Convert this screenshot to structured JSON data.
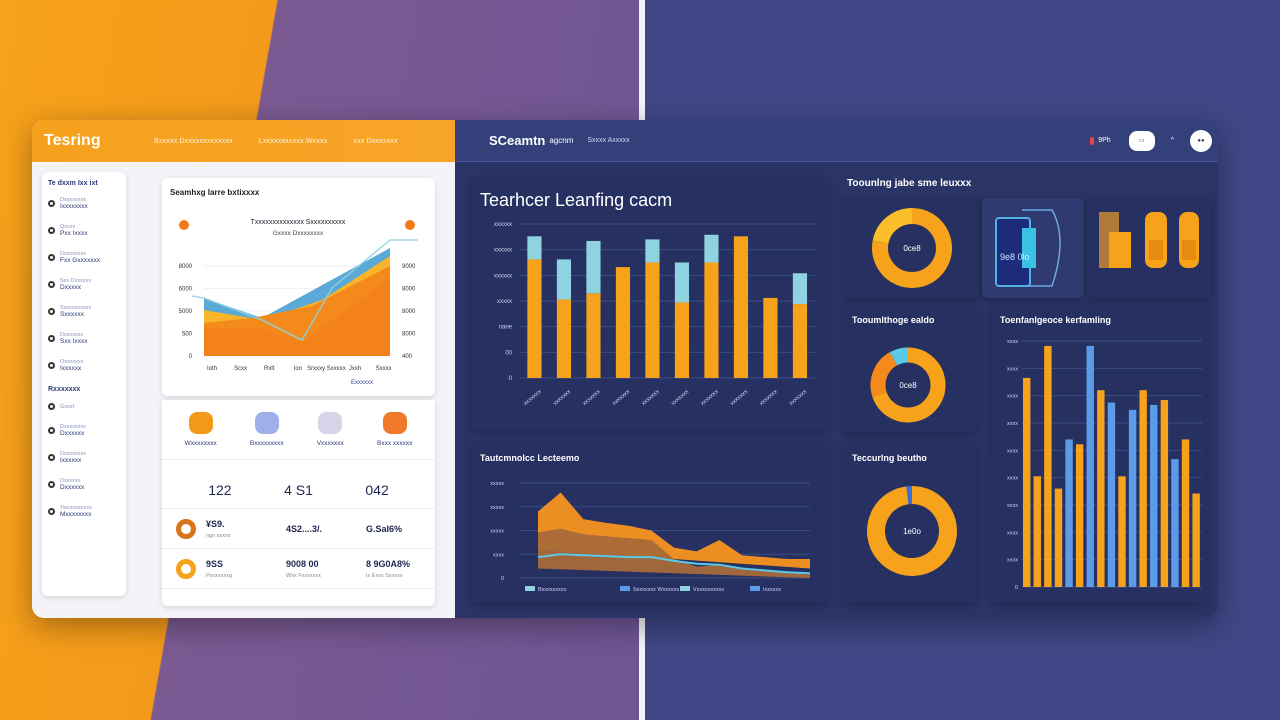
{
  "left": {
    "app_title": "Tesring",
    "nav": [
      "Bxxxxx Dxxxxxxxxxxxxx",
      "Lxxxxxxxxxxx Wxxxx",
      "xxx Dxxxxxxx"
    ],
    "sidebar": {
      "heading": "Te dxxm Ixx ixt",
      "items": [
        {
          "label": "Dxxxxxxxx",
          "sub": "Ixxxxxxxx"
        },
        {
          "label": "Qxxxx",
          "sub": "Pxx Ixxxx"
        },
        {
          "label": "Dxxxxxxxx",
          "sub": "Fxx Gxxxxxxx"
        },
        {
          "label": "Sxx Dxxxxxx",
          "sub": "Dxxxxx"
        },
        {
          "label": "Sxxxxxxxxxx",
          "sub": "Sxxxxxx"
        },
        {
          "label": "Dxxxxxxx",
          "sub": "Sxx Ixxxx"
        },
        {
          "label": "Oxxxxxxx",
          "sub": "Ixxxxxx"
        }
      ],
      "section2": "Rxxxxxxx",
      "items2": [
        {
          "label": "Gxxxt",
          "sub": ""
        },
        {
          "label": "Dxxxxxxxx",
          "sub": "Dxxxxxx"
        },
        {
          "label": "Dxxxxxxxx",
          "sub": "Ixxxxxx"
        },
        {
          "label": "Dxxxxxx",
          "sub": "Dxxxxxx"
        },
        {
          "label": "Twxxxxxxxxx",
          "sub": "Mxxxxxxxx"
        }
      ]
    },
    "area_card": {
      "title": "Seamhxg Iarre bxtixxxx",
      "chart_title": "Txxxxxxxxxxxxxx Sxxxxxxxxxx",
      "chart_subtitle": "Gxxxx Dxxxxxxxx",
      "y_left": [
        "0",
        "500",
        "5000",
        "6000",
        "8000"
      ],
      "y_right": [
        "400",
        "8000",
        "8000",
        "8000",
        "9000"
      ],
      "x": [
        "Ioth",
        "Scxx",
        "Rxlt",
        "Ion",
        "Srxxxy Sxxxxx",
        "Jxxh",
        "Sxxxx"
      ],
      "link": "Exxxxxx"
    },
    "icons": [
      {
        "label": "Wxxxxxxxx",
        "icon": "cloud-icon"
      },
      {
        "label": "Bxxxxxxxxx",
        "icon": "book-icon"
      },
      {
        "label": "Vxxxxxxx",
        "icon": "folder-icon"
      },
      {
        "label": "Bxxx xxxxxx",
        "icon": "refresh-icon"
      }
    ],
    "stats": {
      "headline": [
        "122",
        "4 S1",
        "042"
      ],
      "rows": [
        {
          "a": "¥S9.",
          "a_sub": "ngn xxxxx",
          "b": "4S2....3/.",
          "c": "G.SaI6%",
          "c_sub": ""
        },
        {
          "a": "9SS",
          "a_sub": "Pxxxxxxxg",
          "b": "9008 00",
          "b_sub": "Wxx Fxxxxxxx",
          "c": "8 9G0A8%",
          "c_sub": "Ix Exxx Sxxxxx"
        }
      ]
    }
  },
  "right": {
    "brand": "SCeamtn",
    "brand_sub": "agcnm",
    "nav": "Sxxxx Axxxxx",
    "status": "9Ph",
    "colors": {
      "orange": "#f7a21b",
      "cyan": "#8fd3e0",
      "blue": "#5b9be8",
      "navy": "#2a3467"
    },
    "main_title": "Tearhcer Leanfing cacm",
    "donut_section_title": "Toounlng jabe sme leuxxx",
    "donut1_label": "0ce8",
    "donut2_title": "Tooumlthoge ealdo",
    "donut2_label": "0ce8",
    "donut3_title": "Teccurlng beutho",
    "donut3_label": "1e0o",
    "tablet_label": "9e8 0lo",
    "line_title": "Tautcmnolcc Lecteemo",
    "line_legend": [
      "Bxxxxxxxxx",
      "Sxxxxxxx Wxxxxxx",
      "Vxxxxxxxxxx",
      "Ixxxxxx"
    ],
    "bar2_title": "Toenfanlgeoce kerfamling"
  },
  "chart_data": [
    {
      "type": "bar",
      "title": "Tearhcer Leanfing cacm",
      "y_ticks": [
        "0",
        "00",
        "nane",
        "xxxxx",
        "xxxxxx",
        "xxxxxx",
        "xxxxxx"
      ],
      "ylim": [
        0,
        100
      ],
      "categories": [
        "xxxxxxx",
        "xxxxxxx",
        "xxxxxxx",
        "xxxxxxx",
        "xxxxxxx",
        "xxxxxxx",
        "xxxxxxx",
        "xxxxxxx",
        "xxxxxxx",
        "xxxxxxx"
      ],
      "series": [
        {
          "values": [
            77,
            51,
            55,
            72,
            75,
            49,
            75,
            92,
            52,
            48
          ]
        },
        {
          "values": [
            15,
            26,
            34,
            0,
            15,
            26,
            18,
            0,
            0,
            20
          ]
        }
      ]
    },
    {
      "type": "area",
      "title": "Tautcmnolcc Lecteemo",
      "y_ticks": [
        "0",
        "xxxx",
        "xxxxx",
        "xxxxx",
        "xxxxx"
      ],
      "ylim": [
        0,
        100
      ],
      "x": [
        0,
        1,
        2,
        3,
        4,
        5,
        6,
        7,
        8,
        9,
        10,
        11,
        12
      ],
      "series": [
        {
          "values": [
            70,
            90,
            62,
            58,
            55,
            50,
            32,
            28,
            40,
            24,
            22,
            20,
            20
          ]
        },
        {
          "values": [
            48,
            52,
            46,
            44,
            42,
            40,
            20,
            12,
            14,
            10,
            8,
            6,
            5
          ]
        },
        {
          "values": [
            22,
            25,
            24,
            23,
            22,
            22,
            18,
            15,
            14,
            10,
            8,
            6,
            5
          ]
        }
      ]
    },
    {
      "type": "bar",
      "title": "Toenfanlgeoce kerfamling",
      "y_ticks": [
        "0",
        "xxxx",
        "xxxx",
        "xxxx",
        "xxxx",
        "xxxx",
        "xxxx",
        "xxxx",
        "xxxx",
        "xxxx"
      ],
      "ylim": [
        0,
        100
      ],
      "series": [
        {
          "name": "",
          "values": [
            85,
            45,
            98,
            40,
            0,
            58,
            0,
            80,
            0,
            45,
            0,
            80,
            0,
            76,
            0,
            60,
            38
          ]
        },
        {
          "values": [
            0,
            0,
            0,
            0,
            60,
            0,
            98,
            0,
            75,
            0,
            72,
            0,
            74,
            0,
            52,
            0,
            0
          ]
        }
      ]
    },
    {
      "type": "pie",
      "title": "",
      "values": [
        78,
        22
      ]
    },
    {
      "type": "pie",
      "title": "Tooumlthoge ealdo",
      "values": [
        70,
        22,
        8
      ]
    },
    {
      "type": "pie",
      "title": "Teccurlng beutho",
      "values": [
        98,
        2
      ]
    }
  ]
}
